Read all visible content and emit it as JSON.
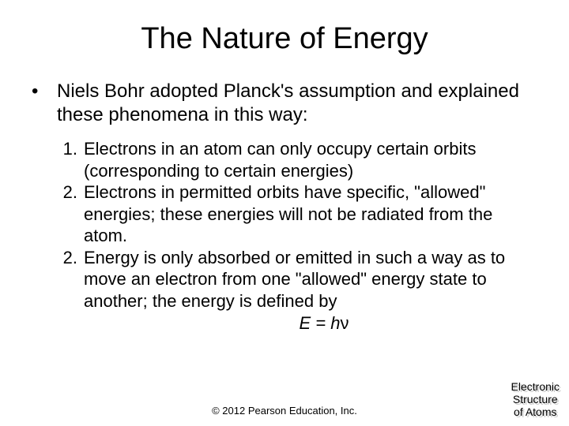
{
  "title": "The Nature of Energy",
  "bullet": {
    "marker": "•",
    "text": "Niels Bohr adopted Planck's assumption and explained these phenomena in this way:"
  },
  "items": [
    {
      "n": "1.",
      "text": "Electrons in an atom can only occupy certain orbits (corresponding to certain energies)"
    },
    {
      "n": "2.",
      "text": "Electrons in permitted orbits have specific, \"allowed\" energies; these energies will not be radiated from the atom."
    },
    {
      "n": "2.",
      "text": "Energy is only absorbed or emitted in such a way as to move an electron from one \"allowed\" energy state to another; the energy is defined by"
    }
  ],
  "equation": {
    "lhs": "E = h",
    "nu": "ν"
  },
  "copyright": "© 2012 Pearson Education, Inc.",
  "corner": {
    "l1": "Electronic",
    "l2": "Structure",
    "l3": "of Atoms"
  },
  "colors": {
    "bg": "#ffffff",
    "text": "#000000",
    "shadow": "#cccccc"
  },
  "fonts": {
    "title_size": 38,
    "body_size": 24,
    "list_size": 22,
    "small_size": 13,
    "corner_size": 14
  }
}
